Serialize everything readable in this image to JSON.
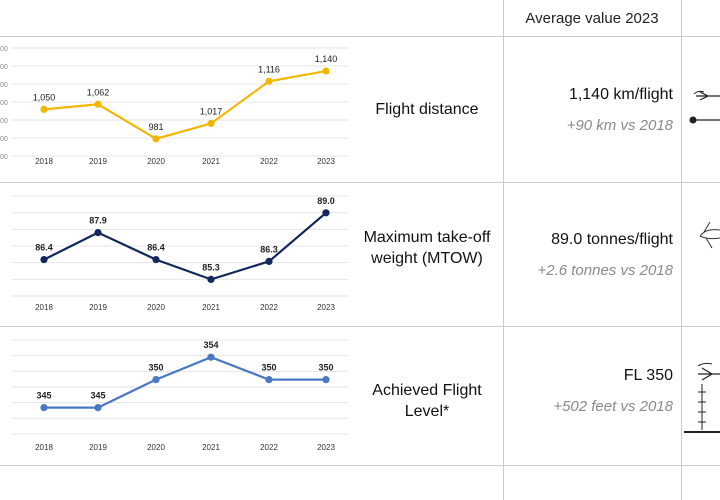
{
  "header": {
    "title": "Average value 2023"
  },
  "rows": [
    {
      "metric": "Flight distance",
      "value": "1,140 km/flight",
      "delta": "+90 km vs 2018"
    },
    {
      "metric": "Maximum take-off weight (MTOW)",
      "value": "89.0 tonnes/flight",
      "delta": "+2.6 tonnes vs 2018"
    },
    {
      "metric": "Achieved Flight Level*",
      "value": "FL 350",
      "delta": "+502 feet vs 2018"
    }
  ],
  "chart_data": [
    {
      "type": "line",
      "categories": [
        "2018",
        "2019",
        "2020",
        "2021",
        "2022",
        "2023"
      ],
      "values": [
        1050,
        1062,
        981,
        1017,
        1116,
        1140
      ],
      "labels": [
        "1,050",
        "1,062",
        "981",
        "1,017",
        "1,116",
        "1,140"
      ],
      "yticks": [
        "00",
        "00",
        "00",
        "00",
        "00",
        "00",
        "00"
      ],
      "ylim": [
        950,
        1180
      ],
      "grid": true,
      "color": "#f2b705"
    },
    {
      "type": "line",
      "categories": [
        "2018",
        "2019",
        "2020",
        "2021",
        "2022",
        "2023"
      ],
      "values": [
        86.4,
        87.9,
        86.4,
        85.3,
        86.3,
        89.0
      ],
      "labels": [
        "86.4",
        "87.9",
        "86.4",
        "85.3",
        "86.3",
        "89.0"
      ],
      "ylim": [
        84.6,
        89.6
      ],
      "grid": true,
      "color": "#13275a"
    },
    {
      "type": "line",
      "categories": [
        "2018",
        "2019",
        "2020",
        "2021",
        "2022",
        "2023"
      ],
      "values": [
        345,
        345,
        350,
        354,
        350,
        350
      ],
      "labels": [
        "345",
        "345",
        "350",
        "354",
        "350",
        "350"
      ],
      "ylim": [
        341,
        356
      ],
      "grid": true,
      "color": "#4a78c2"
    }
  ]
}
